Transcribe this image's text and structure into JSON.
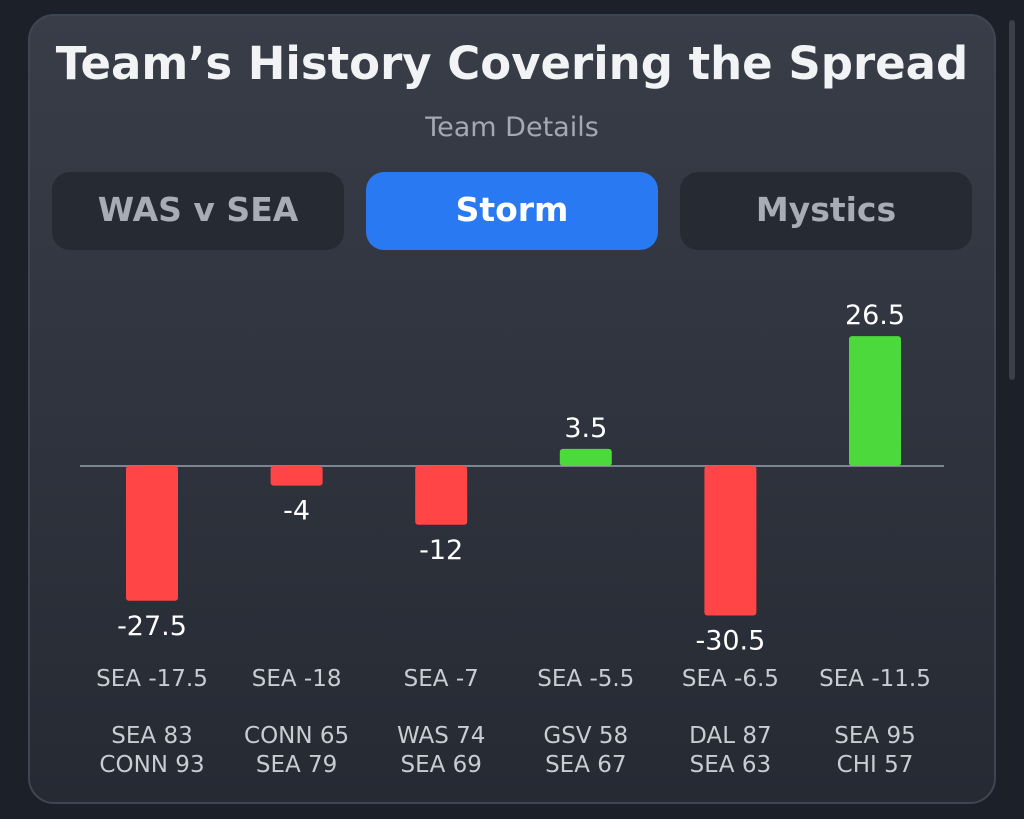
{
  "header": {
    "title": "Team’s History Covering the Spread",
    "subtitle": "Team Details"
  },
  "tabs": [
    {
      "label": "WAS v SEA",
      "active": false
    },
    {
      "label": "Storm",
      "active": true
    },
    {
      "label": "Mystics",
      "active": false
    }
  ],
  "colors": {
    "positive": "#4cd93c",
    "negative": "#ff4545",
    "accent": "#2979f2"
  },
  "chart_data": {
    "type": "bar",
    "categories": [
      "SEA -17.5",
      "SEA -18",
      "SEA -7",
      "SEA -5.5",
      "SEA -6.5",
      "SEA -11.5"
    ],
    "values": [
      -27.5,
      -4,
      -12,
      3.5,
      -30.5,
      26.5
    ],
    "value_labels": [
      "-27.5",
      "-4",
      "-12",
      "3.5",
      "-30.5",
      "26.5"
    ],
    "scores": [
      [
        "SEA 83",
        "CONN 93"
      ],
      [
        "CONN 65",
        "SEA 79"
      ],
      [
        "WAS 74",
        "SEA 69"
      ],
      [
        "GSV 58",
        "SEA 67"
      ],
      [
        "DAL 87",
        "SEA 63"
      ],
      [
        "SEA 95",
        "CHI 57"
      ]
    ],
    "ylim": [
      -30.5,
      26.5
    ]
  }
}
